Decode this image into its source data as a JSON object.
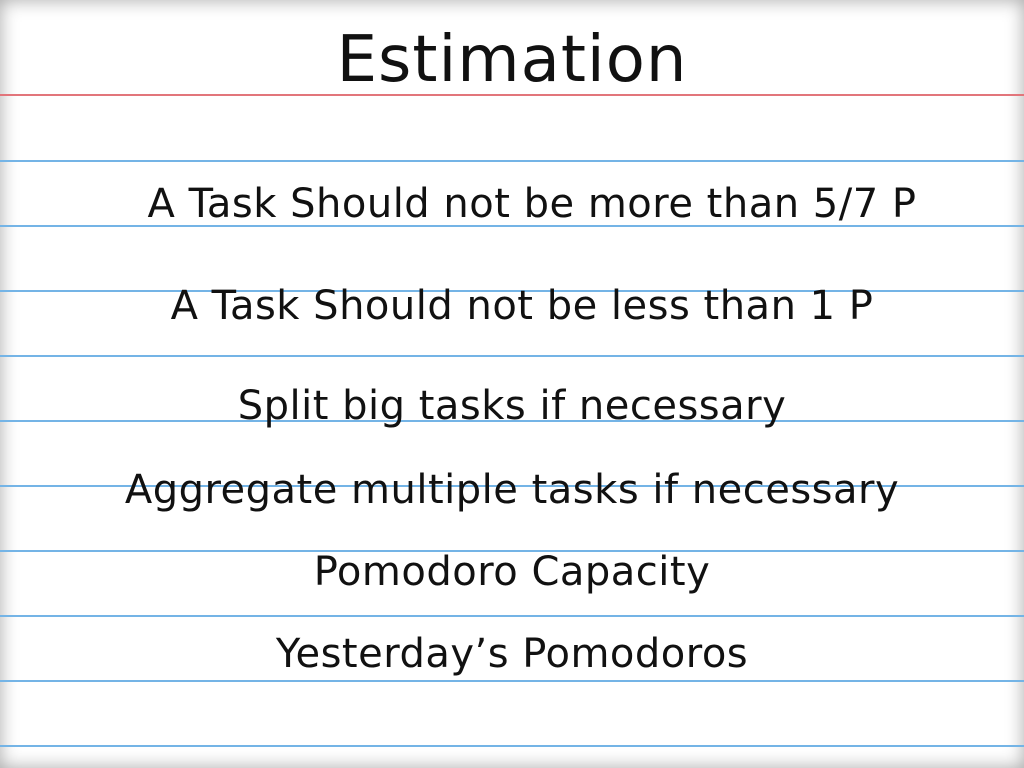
{
  "slide": {
    "title": "Estimation",
    "bullets": [
      "A Task Should not be more than 5/7 P",
      "A Task Should not be less than 1 P",
      "Split big tasks if necessary",
      "Aggregate multiple tasks if necessary",
      "Pomodoro Capacity",
      "Yesterday’s Pomodoros"
    ]
  },
  "colors": {
    "ruled_line": "#74b4e6",
    "margin_line": "#e2757b",
    "text": "#111111",
    "paper": "#ffffff"
  }
}
